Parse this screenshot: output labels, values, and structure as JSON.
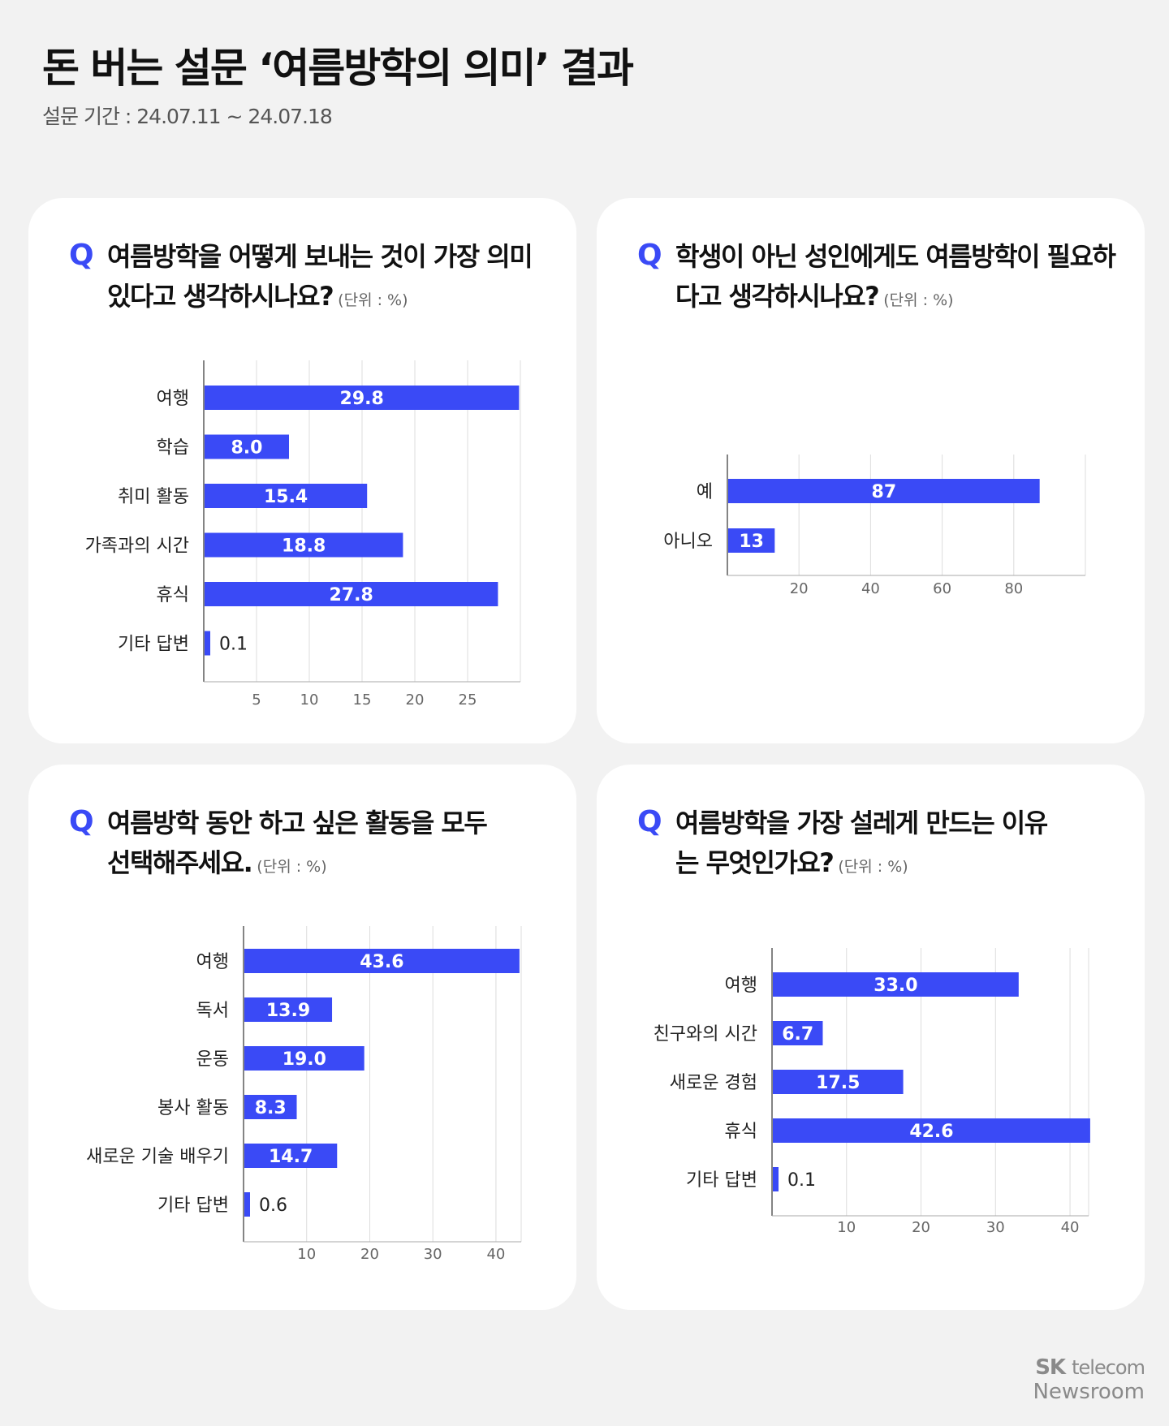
{
  "header": {
    "title": "돈 버는 설문 ‘여름방학의 의미’ 결과",
    "subtitle": "설문 기간 : 24.07.11 ~ 24.07.18"
  },
  "colors": {
    "bar": "#3a4af6",
    "background": "#f2f2f2",
    "card": "#ffffff",
    "q_mark": "#3a4af6"
  },
  "q_mark": "Q",
  "unit_label": "(단위 : %)",
  "chart_data": [
    {
      "type": "bar",
      "orientation": "horizontal",
      "question": "여름방학을 어떻게 보내는 것이 가장 의미 있다고 생각하시나요?",
      "categories": [
        "여행",
        "학습",
        "취미 활동",
        "가족과의 시간",
        "휴식",
        "기타 답변"
      ],
      "values": [
        29.8,
        8.0,
        15.4,
        18.8,
        27.8,
        0.1
      ],
      "value_labels": [
        "29.8",
        "8.0",
        "15.4",
        "18.8",
        "27.8",
        "0.1"
      ],
      "xticks": [
        "5",
        "10",
        "15",
        "20",
        "25"
      ],
      "xlim": [
        0,
        30
      ],
      "grid": true
    },
    {
      "type": "bar",
      "orientation": "horizontal",
      "question": "학생이 아닌 성인에게도 여름방학이 필요하다고 생각하시나요?",
      "categories": [
        "예",
        "아니오"
      ],
      "values": [
        87,
        13
      ],
      "value_labels": [
        "87",
        "13"
      ],
      "xticks": [
        "20",
        "40",
        "60",
        "80"
      ],
      "xlim": [
        0,
        100
      ],
      "grid": true
    },
    {
      "type": "bar",
      "orientation": "horizontal",
      "question": "여름방학 동안 하고 싶은 활동을 모두 선택해주세요.",
      "categories": [
        "여행",
        "독서",
        "운동",
        "봉사 활동",
        "새로운 기술 배우기",
        "기타 답변"
      ],
      "values": [
        43.6,
        13.9,
        19.0,
        8.3,
        14.7,
        0.6
      ],
      "value_labels": [
        "43.6",
        "13.9",
        "19.0",
        "8.3",
        "14.7",
        "0.6"
      ],
      "xticks": [
        "10",
        "20",
        "30",
        "40"
      ],
      "xlim": [
        0,
        44
      ],
      "grid": true
    },
    {
      "type": "bar",
      "orientation": "horizontal",
      "question": "여름방학을 가장 설레게 만드는 이유는 무엇인가요?",
      "categories": [
        "여행",
        "친구와의 시간",
        "새로운 경험",
        "휴식",
        "기타 답변"
      ],
      "values": [
        33.0,
        6.7,
        17.5,
        42.6,
        0.1
      ],
      "value_labels": [
        "33.0",
        "6.7",
        "17.5",
        "42.6",
        "0.1"
      ],
      "xticks": [
        "10",
        "20",
        "30",
        "40"
      ],
      "xlim": [
        0,
        42.5
      ],
      "grid": true
    }
  ],
  "footer": {
    "logo_sk": "SK",
    "logo_telecom": "telecom",
    "logo_newsroom": "Newsroom"
  }
}
